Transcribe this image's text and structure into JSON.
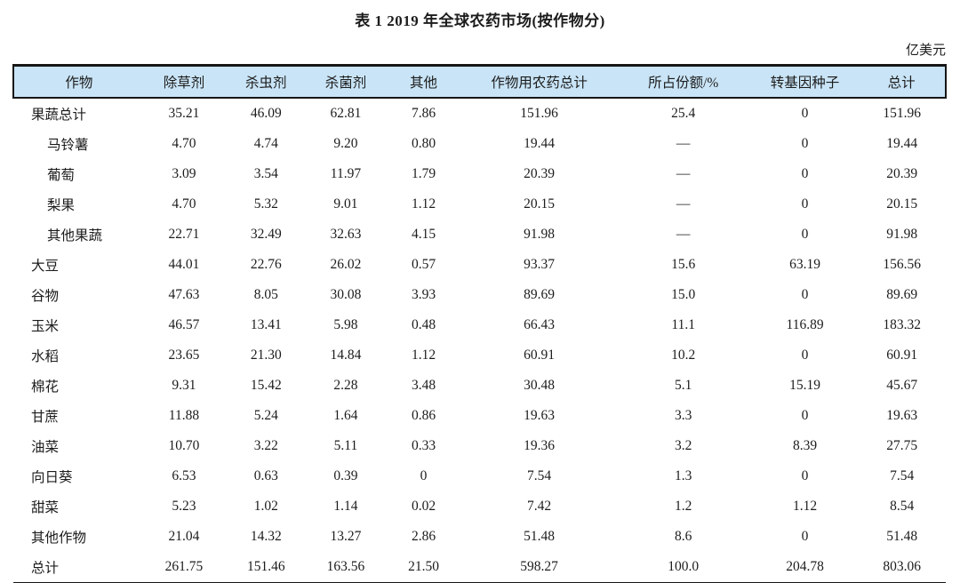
{
  "page": {
    "title": "表 1  2019 年全球农药市场(按作物分)",
    "unit_label": "亿美元"
  },
  "table": {
    "header_bg": "#c9e4f6",
    "columns": [
      "作物",
      "除草剂",
      "杀虫剂",
      "杀菌剂",
      "其他",
      "作物用农药总计",
      "所占份额/%",
      "转基因种子",
      "总计"
    ],
    "rows": [
      {
        "crop": "果蔬总计",
        "indent": false,
        "values": [
          "35.21",
          "46.09",
          "62.81",
          "7.86",
          "151.96",
          "25.4",
          "0",
          "151.96"
        ]
      },
      {
        "crop": "马铃薯",
        "indent": true,
        "values": [
          "4.70",
          "4.74",
          "9.20",
          "0.80",
          "19.44",
          "—",
          "0",
          "19.44"
        ]
      },
      {
        "crop": "葡萄",
        "indent": true,
        "values": [
          "3.09",
          "3.54",
          "11.97",
          "1.79",
          "20.39",
          "—",
          "0",
          "20.39"
        ]
      },
      {
        "crop": "梨果",
        "indent": true,
        "values": [
          "4.70",
          "5.32",
          "9.01",
          "1.12",
          "20.15",
          "—",
          "0",
          "20.15"
        ]
      },
      {
        "crop": "其他果蔬",
        "indent": true,
        "values": [
          "22.71",
          "32.49",
          "32.63",
          "4.15",
          "91.98",
          "—",
          "0",
          "91.98"
        ]
      },
      {
        "crop": "大豆",
        "indent": false,
        "values": [
          "44.01",
          "22.76",
          "26.02",
          "0.57",
          "93.37",
          "15.6",
          "63.19",
          "156.56"
        ]
      },
      {
        "crop": "谷物",
        "indent": false,
        "values": [
          "47.63",
          "8.05",
          "30.08",
          "3.93",
          "89.69",
          "15.0",
          "0",
          "89.69"
        ]
      },
      {
        "crop": "玉米",
        "indent": false,
        "values": [
          "46.57",
          "13.41",
          "5.98",
          "0.48",
          "66.43",
          "11.1",
          "116.89",
          "183.32"
        ]
      },
      {
        "crop": "水稻",
        "indent": false,
        "values": [
          "23.65",
          "21.30",
          "14.84",
          "1.12",
          "60.91",
          "10.2",
          "0",
          "60.91"
        ]
      },
      {
        "crop": "棉花",
        "indent": false,
        "values": [
          "9.31",
          "15.42",
          "2.28",
          "3.48",
          "30.48",
          "5.1",
          "15.19",
          "45.67"
        ]
      },
      {
        "crop": "甘蔗",
        "indent": false,
        "values": [
          "11.88",
          "5.24",
          "1.64",
          "0.86",
          "19.63",
          "3.3",
          "0",
          "19.63"
        ]
      },
      {
        "crop": "油菜",
        "indent": false,
        "values": [
          "10.70",
          "3.22",
          "5.11",
          "0.33",
          "19.36",
          "3.2",
          "8.39",
          "27.75"
        ]
      },
      {
        "crop": "向日葵",
        "indent": false,
        "values": [
          "6.53",
          "0.63",
          "0.39",
          "0",
          "7.54",
          "1.3",
          "0",
          "7.54"
        ]
      },
      {
        "crop": "甜菜",
        "indent": false,
        "values": [
          "5.23",
          "1.02",
          "1.14",
          "0.02",
          "7.42",
          "1.2",
          "1.12",
          "8.54"
        ]
      },
      {
        "crop": "其他作物",
        "indent": false,
        "values": [
          "21.04",
          "14.32",
          "13.27",
          "2.86",
          "51.48",
          "8.6",
          "0",
          "51.48"
        ]
      },
      {
        "crop": "总计",
        "indent": false,
        "values": [
          "261.75",
          "151.46",
          "163.56",
          "21.50",
          "598.27",
          "100.0",
          "204.78",
          "803.06"
        ]
      }
    ]
  }
}
